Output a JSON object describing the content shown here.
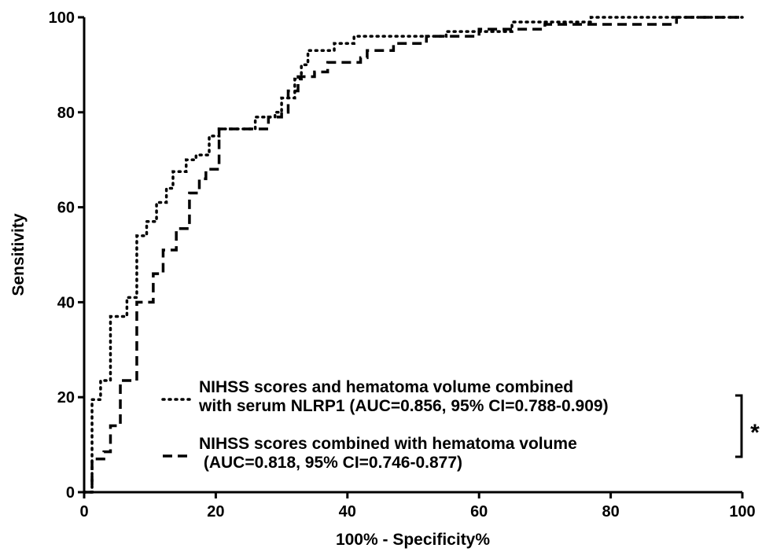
{
  "chart_data": {
    "type": "line",
    "x_label": "100% - Specificity%",
    "y_label": "Sensitivity",
    "xlim": [
      0,
      100
    ],
    "ylim": [
      0,
      100
    ],
    "xticks": [
      0,
      20,
      40,
      60,
      80,
      100
    ],
    "yticks": [
      0,
      20,
      40,
      60,
      80,
      100
    ],
    "annotation": "*",
    "series": [
      {
        "name": "NIHSS scores and hematoma volume combined\nwith serum NLRP1 (AUC=0.856, 95% CI=0.788-0.909)",
        "color": "#000000",
        "line_style": "dotted",
        "x": [
          0,
          1.2,
          1.2,
          2.5,
          2.5,
          4,
          4,
          6.5,
          6.5,
          8,
          8,
          9.5,
          9.5,
          11,
          11,
          12.5,
          12.5,
          13.5,
          13.5,
          15.5,
          15.5,
          17,
          17,
          19,
          19,
          20.5,
          20.5,
          26,
          26,
          29,
          29,
          30,
          30,
          32,
          32,
          33,
          33,
          34,
          34,
          38,
          38,
          41,
          41,
          55,
          55,
          65,
          65,
          77,
          77,
          100
        ],
        "values": [
          0,
          0,
          19.5,
          19.5,
          23.5,
          23.5,
          37,
          37,
          41,
          41,
          54,
          54,
          57,
          57,
          61,
          61,
          64,
          64,
          67.5,
          67.5,
          70,
          70,
          71,
          71,
          75,
          75,
          76.5,
          76.5,
          79,
          79,
          80,
          80,
          83,
          83,
          87,
          87,
          90,
          90,
          93,
          93,
          94.5,
          94.5,
          96,
          96,
          97,
          97,
          99,
          99,
          100,
          100
        ]
      },
      {
        "name": "NIHSS scores combined with hematoma volume\n (AUC=0.818, 95% CI=0.746-0.877)",
        "color": "#000000",
        "line_style": "dashed",
        "x": [
          0,
          1.2,
          1.2,
          3,
          3,
          4,
          4,
          5.5,
          5.5,
          8,
          8,
          10.5,
          10.5,
          12,
          12,
          14,
          14,
          16,
          16,
          17.5,
          17.5,
          18.5,
          18.5,
          20.5,
          20.5,
          28,
          28,
          30,
          30,
          31,
          31,
          32.5,
          32.5,
          35,
          35,
          37,
          37,
          42,
          42,
          43,
          43,
          47,
          47,
          52,
          52,
          60,
          60,
          70,
          70,
          90,
          90,
          100
        ],
        "values": [
          0,
          0,
          7,
          7,
          8.5,
          8.5,
          14,
          14,
          23.5,
          23.5,
          40,
          40,
          46,
          46,
          51,
          51,
          55.5,
          55.5,
          63,
          63,
          66,
          66,
          68,
          68,
          76.5,
          76.5,
          79,
          79,
          80,
          80,
          84.5,
          84.5,
          87.5,
          87.5,
          88.5,
          88.5,
          90.5,
          90.5,
          91.5,
          91.5,
          93,
          93,
          94.5,
          94.5,
          96,
          96,
          97.5,
          97.5,
          98.5,
          98.5,
          100,
          100
        ]
      }
    ]
  }
}
